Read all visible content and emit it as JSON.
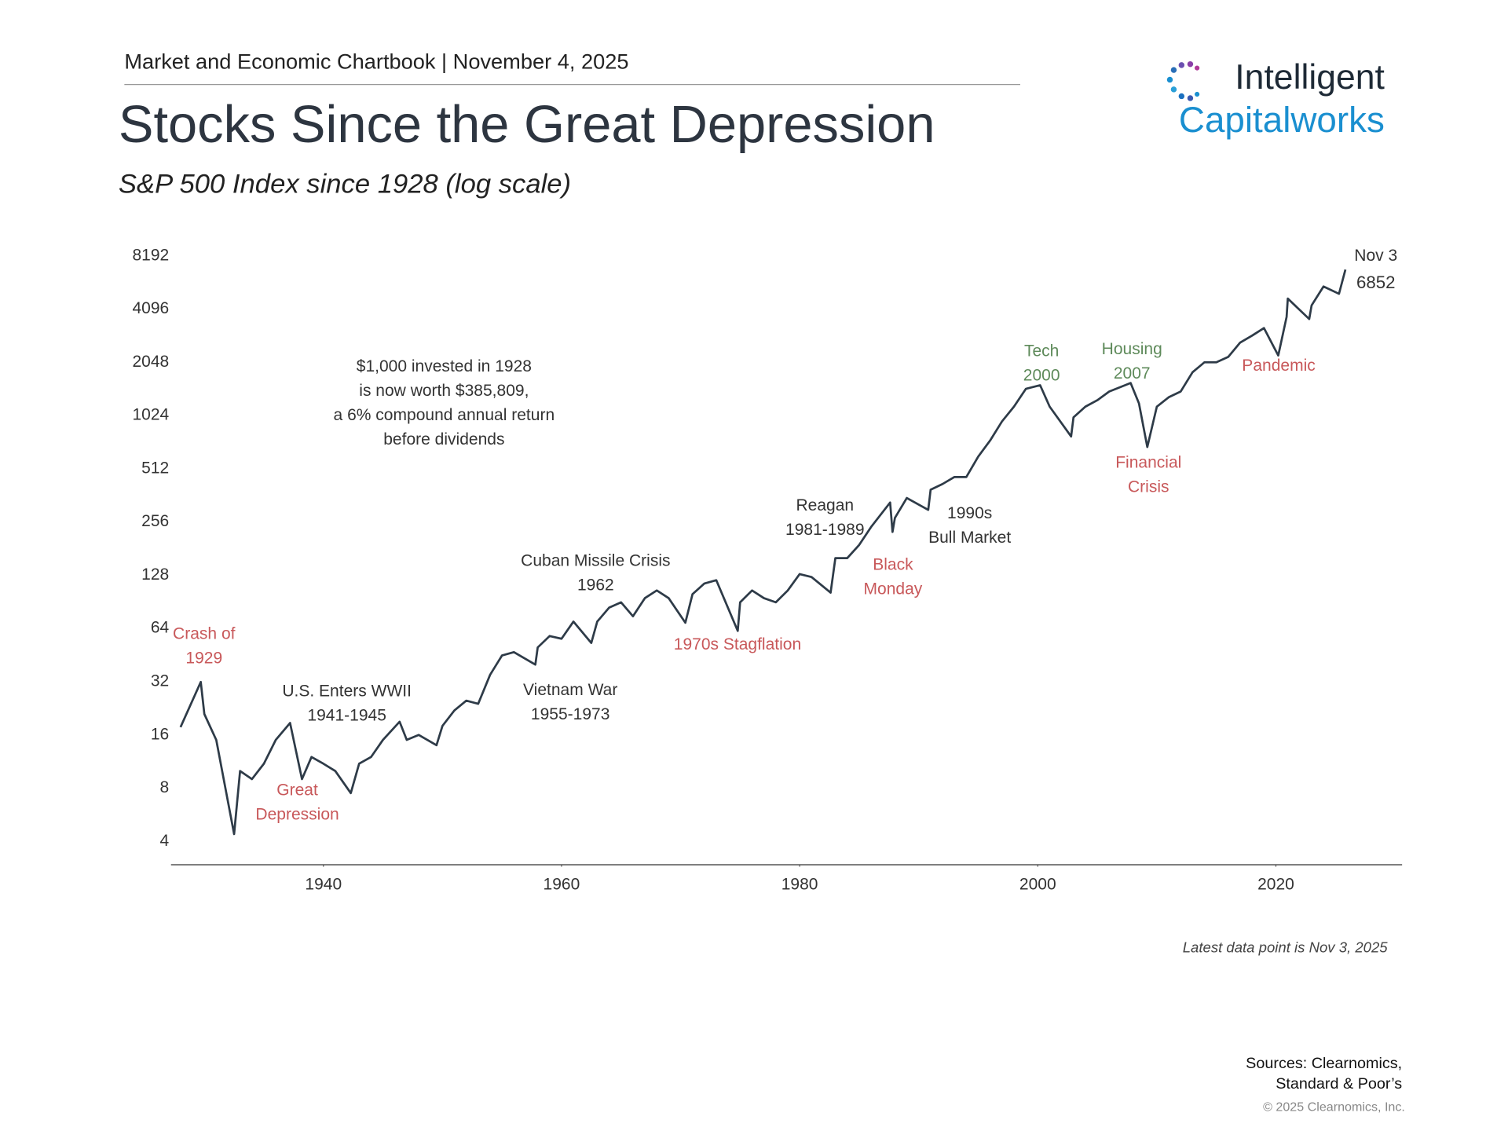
{
  "header": {
    "top": "Market and Economic Chartbook | November 4, 2025",
    "title": "Stocks Since the Great Depression",
    "logo": [
      "Intelligent",
      "Capitalworks"
    ]
  },
  "chart_data": {
    "type": "line",
    "subtitle": "S&P 500 Index since 1928 (log scale)",
    "x": [
      1928,
      1929.7,
      1930,
      1931,
      1932.5,
      1933,
      1934,
      1935,
      1936,
      1937.2,
      1938.2,
      1939,
      1940,
      1941,
      1942.3,
      1943,
      1944,
      1945,
      1946.4,
      1947,
      1948,
      1949.5,
      1950,
      1951,
      1952,
      1953,
      1954,
      1955,
      1956,
      1957.8,
      1958,
      1959,
      1960,
      1961,
      1962.5,
      1963,
      1964,
      1965,
      1966,
      1967,
      1968,
      1969,
      1970.4,
      1971,
      1972,
      1973,
      1974.8,
      1975,
      1976,
      1977,
      1978,
      1979,
      1980,
      1981,
      1982.6,
      1983,
      1984,
      1985,
      1986,
      1987.6,
      1987.8,
      1988,
      1989,
      1990.8,
      1991,
      1992,
      1993,
      1994,
      1995,
      1996,
      1997,
      1998,
      1999,
      2000.2,
      2001,
      2002.8,
      2003,
      2004,
      2005,
      2006,
      2007.8,
      2008.5,
      2009.2,
      2010,
      2011,
      2012,
      2013,
      2014,
      2015,
      2016,
      2017,
      2018,
      2019,
      2020.2,
      2020.9,
      2021,
      2022.8,
      2023,
      2024,
      2025.3,
      2025.84
    ],
    "series": [
      {
        "color": "#2e3b48",
        "values": [
          17.7,
          31.9,
          21,
          15,
          4.4,
          10,
          9,
          11,
          15,
          18.7,
          9,
          12,
          11,
          10,
          7.5,
          11,
          12,
          15,
          19,
          15,
          16,
          14,
          18,
          22,
          25,
          24,
          35,
          45,
          47,
          40,
          50,
          58,
          56,
          70,
          53,
          70,
          84,
          90,
          75,
          95,
          105,
          95,
          69,
          100,
          115,
          120,
          62,
          90,
          105,
          95,
          90,
          105,
          130,
          125,
          102,
          160,
          160,
          190,
          240,
          330,
          225,
          270,
          350,
          300,
          390,
          420,
          460,
          460,
          600,
          740,
          950,
          1150,
          1450,
          1520,
          1150,
          780,
          1000,
          1150,
          1250,
          1400,
          1565,
          1200,
          680,
          1150,
          1300,
          1400,
          1800,
          2050,
          2050,
          2200,
          2650,
          2900,
          3200,
          2240,
          3700,
          4700,
          3600,
          4300,
          5500,
          5000,
          6852
        ]
      }
    ],
    "yscale": "log",
    "grid": false,
    "xlim": [
      1927.2,
      2030.6
    ],
    "xticks": [
      1940,
      1960,
      1980,
      2000,
      2020
    ],
    "ylim": [
      2.95,
      9700
    ],
    "yticks": [
      4,
      8,
      16,
      32,
      64,
      128,
      256,
      512,
      1024,
      2048,
      4096,
      8192
    ],
    "annotations": [
      {
        "lines": [
          "Crash of",
          "1929"
        ],
        "color": "#c8585a"
      },
      {
        "lines": [
          "Great",
          "Depression"
        ],
        "color": "#c8585a"
      },
      {
        "lines": [
          "U.S. Enters WWII",
          "1941-1945"
        ],
        "color": "#333333"
      },
      {
        "lines": [
          "Cuban Missile Crisis",
          "1962"
        ],
        "color": "#333333"
      },
      {
        "lines": [
          "Vietnam War",
          "1955-1973"
        ],
        "color": "#333333"
      },
      {
        "lines": [
          "1970s Stagflation"
        ],
        "color": "#c8585a"
      },
      {
        "lines": [
          "Reagan",
          "1981-1989"
        ],
        "color": "#333333"
      },
      {
        "lines": [
          "Black",
          "Monday"
        ],
        "color": "#c8585a"
      },
      {
        "lines": [
          "1990s",
          "Bull Market"
        ],
        "color": "#333333"
      },
      {
        "lines": [
          "Tech",
          "2000"
        ],
        "color": "#5e8a5a"
      },
      {
        "lines": [
          "Housing",
          "2007"
        ],
        "color": "#5e8a5a"
      },
      {
        "lines": [
          "Financial",
          "Crisis"
        ],
        "color": "#c8585a"
      },
      {
        "lines": [
          "Pandemic"
        ],
        "color": "#c8585a"
      },
      {
        "lines": [
          "$1,000 invested in 1928",
          "is now worth $385,809,",
          "a 6% compound annual return",
          "before dividends"
        ],
        "color": "#333333"
      },
      {
        "lines": [
          "Nov 3"
        ],
        "color": "#333333"
      }
    ],
    "note": "Latest data point is Nov 3, 2025"
  },
  "footer": {
    "sources": [
      "Sources: Clearnomics,",
      "Standard & Poor’s"
    ],
    "copyright": "© 2025 Clearnomics, Inc."
  }
}
